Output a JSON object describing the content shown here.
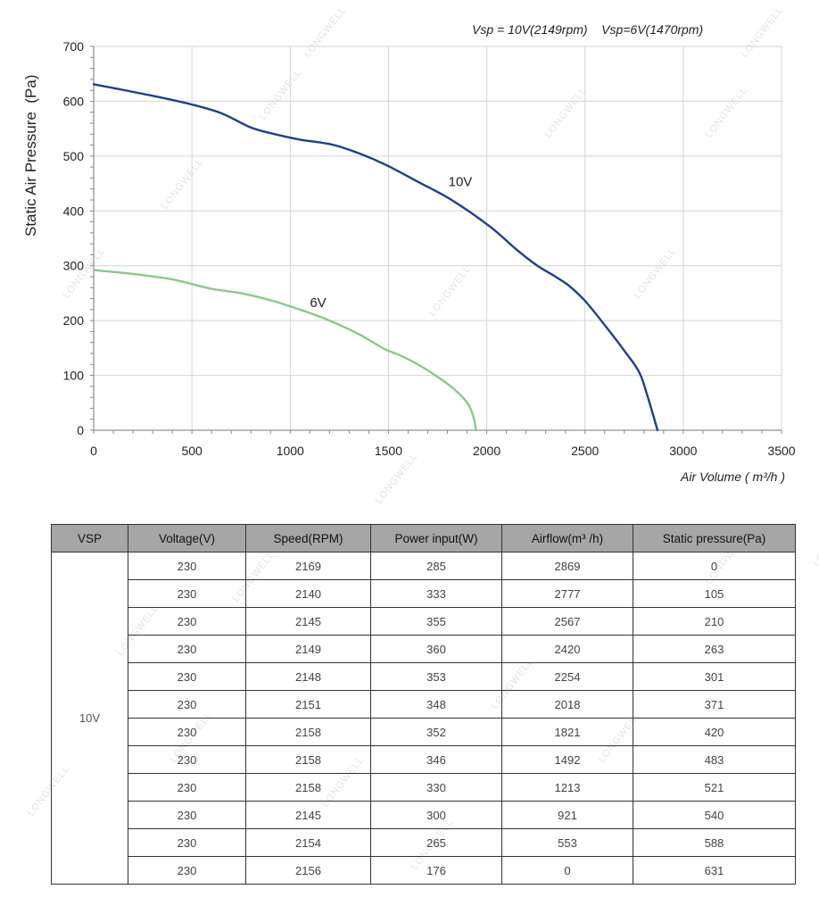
{
  "chart_data": {
    "type": "line",
    "title": "",
    "legend_text": "Vsp = 10V(2149rpm)    Vsp=6V(1470rpm)",
    "xlabel": "Air Volume ( m³/h )",
    "ylabel": "Static Air Pressure  (Pa)",
    "xlim": [
      0,
      3500
    ],
    "ylim": [
      0,
      700
    ],
    "xticks": [
      0,
      500,
      1000,
      1500,
      2000,
      2500,
      3000,
      3500
    ],
    "yticks": [
      0,
      100,
      200,
      300,
      400,
      500,
      600,
      700
    ],
    "grid": true,
    "series": [
      {
        "name": "10V",
        "color": "#1f3f8c",
        "x": [
          0,
          300,
          500,
          650,
          800,
          921,
          1050,
          1213,
          1350,
          1492,
          1650,
          1821,
          2018,
          2150,
          2254,
          2350,
          2420,
          2500,
          2600,
          2700,
          2777,
          2820,
          2869
        ],
        "y": [
          631,
          610,
          594,
          578,
          552,
          540,
          530,
          521,
          505,
          483,
          453,
          420,
          371,
          330,
          301,
          280,
          263,
          236,
          192,
          145,
          105,
          60,
          0
        ]
      },
      {
        "name": "6V",
        "color": "#8dc78d",
        "x": [
          0,
          200,
          400,
          600,
          750,
          900,
          1050,
          1200,
          1350,
          1480,
          1550,
          1650,
          1760,
          1850,
          1910,
          1935,
          1945
        ],
        "y": [
          292,
          285,
          275,
          258,
          250,
          237,
          220,
          200,
          175,
          148,
          138,
          120,
          95,
          70,
          45,
          20,
          0
        ]
      }
    ]
  },
  "table": {
    "headers": [
      "VSP",
      "Voltage(V)",
      "Speed(RPM)",
      "Power input(W)",
      "Airflow(m³ /h)",
      "Static pressure(Pa)"
    ],
    "vsp": "10V",
    "rows": [
      [
        "230",
        "2169",
        "285",
        "2869",
        "0"
      ],
      [
        "230",
        "2140",
        "333",
        "2777",
        "105"
      ],
      [
        "230",
        "2145",
        "355",
        "2567",
        "210"
      ],
      [
        "230",
        "2149",
        "360",
        "2420",
        "263"
      ],
      [
        "230",
        "2148",
        "353",
        "2254",
        "301"
      ],
      [
        "230",
        "2151",
        "348",
        "2018",
        "371"
      ],
      [
        "230",
        "2158",
        "352",
        "1821",
        "420"
      ],
      [
        "230",
        "2158",
        "346",
        "1492",
        "483"
      ],
      [
        "230",
        "2158",
        "330",
        "1213",
        "521"
      ],
      [
        "230",
        "2145",
        "300",
        "921",
        "540"
      ],
      [
        "230",
        "2154",
        "265",
        "553",
        "588"
      ],
      [
        "230",
        "2156",
        "176",
        "0",
        "631"
      ]
    ]
  },
  "watermark": "LONGWELL"
}
